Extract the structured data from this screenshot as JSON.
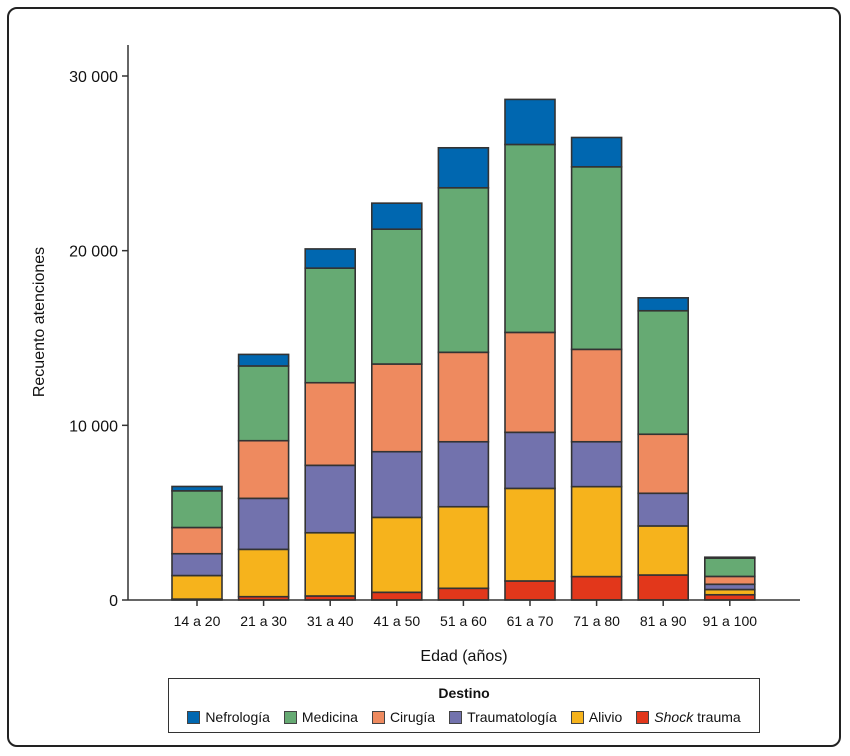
{
  "chart_data": {
    "type": "bar",
    "stacked": true,
    "xlabel": "Edad (años)",
    "ylabel": "Recuento atenciones",
    "ylim": [
      0,
      30000
    ],
    "yticks": [
      0,
      10000,
      20000,
      30000
    ],
    "ytick_labels": [
      "0",
      "10 000",
      "20 000",
      "30 000"
    ],
    "grid": false,
    "legend_title": "Destino",
    "legend_position": "bottom",
    "categories": [
      "14 a 20",
      "21 a 30",
      "31 a 40",
      "41 a 50",
      "51 a 60",
      "61 a 70",
      "71 a 80",
      "81 a 90",
      "91 a 100"
    ],
    "series": [
      {
        "name": "Shock trauma",
        "color": "#e2371b",
        "values": [
          50,
          190,
          230,
          440,
          670,
          1090,
          1340,
          1430,
          300
        ]
      },
      {
        "name": "Alivio",
        "color": "#f6b31c",
        "values": [
          1350,
          2710,
          3620,
          4290,
          4670,
          5300,
          5150,
          2810,
          300
        ]
      },
      {
        "name": "Traumatología",
        "color": "#7272ad",
        "values": [
          1250,
          2920,
          3860,
          3760,
          3720,
          3210,
          2570,
          1870,
          300
        ]
      },
      {
        "name": "Cirugía",
        "color": "#ee8a5f",
        "values": [
          1500,
          3300,
          4730,
          5020,
          5120,
          5720,
          5290,
          3380,
          450
        ]
      },
      {
        "name": "Medicina",
        "color": "#66aa73",
        "values": [
          2100,
          4280,
          6560,
          7720,
          9420,
          10760,
          10450,
          7070,
          1050
        ]
      },
      {
        "name": "Nefrología",
        "color": "#0067b0",
        "values": [
          250,
          660,
          1100,
          1490,
          2290,
          2580,
          1680,
          740,
          50
        ]
      }
    ]
  },
  "legend": {
    "title": "Destino",
    "items": [
      {
        "label": "Nefrología",
        "color": "#0067b0"
      },
      {
        "label": "Medicina",
        "color": "#66aa73"
      },
      {
        "label": "Cirugía",
        "color": "#ee8a5f"
      },
      {
        "label": "Traumatología",
        "color": "#7272ad"
      },
      {
        "label": "Alivio",
        "color": "#f6b31c"
      },
      {
        "label_italic": "Shock",
        "label": " trauma",
        "color": "#e2371b"
      }
    ]
  }
}
